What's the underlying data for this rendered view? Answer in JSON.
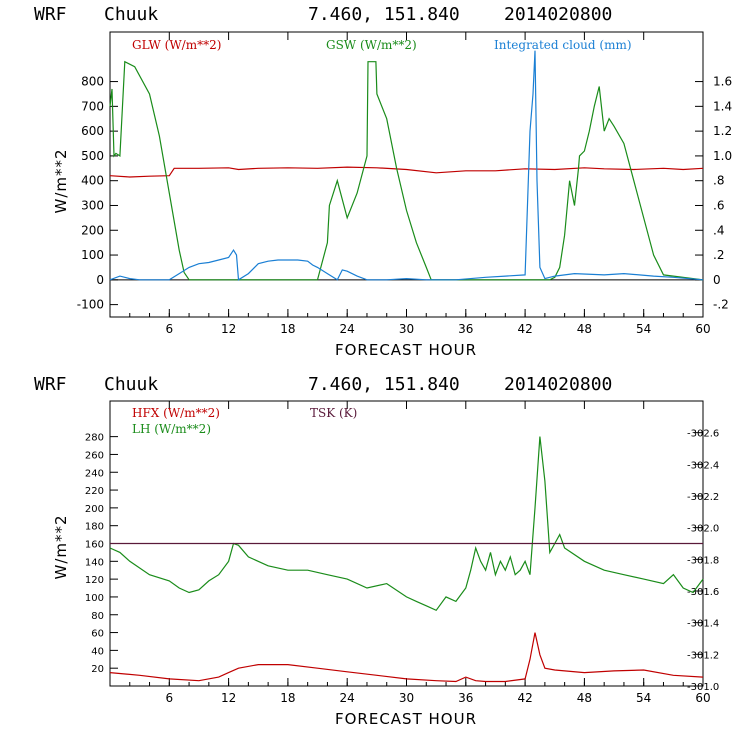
{
  "colors": {
    "red": "#c00000",
    "green": "#1a8c1a",
    "blue": "#1a7fd4",
    "purple": "#5a1a3a"
  },
  "chart_data": [
    {
      "type": "line",
      "header": {
        "model": "WRF",
        "station": "Chuuk",
        "coords": "7.460, 151.840",
        "date": "2014020800"
      },
      "xlabel": "FORECAST HOUR",
      "ylabel": "W/m**2",
      "xlim": [
        0,
        60
      ],
      "ylim": [
        -150,
        1000
      ],
      "y2lim": [
        -0.3,
        2.0
      ],
      "x_ticks": [
        "6",
        "12",
        "18",
        "24",
        "30",
        "36",
        "42",
        "48",
        "54",
        "60"
      ],
      "y_ticks": [
        "-100",
        "0",
        "100",
        "200",
        "300",
        "400",
        "500",
        "600",
        "700",
        "800"
      ],
      "y2_ticks": [
        "-.2",
        "0",
        ".2",
        ".4",
        ".6",
        ".8",
        "1.0",
        "1.2",
        "1.4",
        "1.6"
      ],
      "reference_line": 0,
      "series": [
        {
          "name": "GLW (W/m**2)",
          "color": "red",
          "axis": "left",
          "x": [
            0,
            2,
            4,
            6,
            6.5,
            9,
            12,
            13,
            15,
            18,
            21,
            24,
            27,
            30,
            33,
            36,
            39,
            42,
            45,
            48,
            50,
            53,
            56,
            58,
            60
          ],
          "y": [
            420,
            415,
            418,
            420,
            450,
            450,
            452,
            445,
            450,
            452,
            450,
            455,
            452,
            445,
            432,
            440,
            440,
            448,
            445,
            452,
            448,
            445,
            450,
            445,
            450
          ]
        },
        {
          "name": "GSW (W/m**2)",
          "color": "green",
          "axis": "left",
          "x": [
            0,
            0.2,
            0.4,
            0.6,
            1.0,
            1.5,
            2.5,
            4,
            5,
            6,
            7,
            7.5,
            8,
            19,
            21,
            22,
            22.2,
            23,
            24,
            25,
            26,
            26.1,
            26.9,
            27,
            28,
            29,
            30,
            31,
            32,
            32.5,
            44.5,
            45,
            45.5,
            46,
            46.5,
            47,
            47.4,
            47.5,
            48,
            48.5,
            49,
            49.5,
            50,
            50.5,
            51,
            52,
            53,
            54,
            55,
            56,
            60
          ],
          "y": [
            700,
            770,
            500,
            510,
            500,
            880,
            860,
            750,
            580,
            350,
            120,
            30,
            0,
            0,
            0,
            150,
            300,
            400,
            250,
            350,
            500,
            880,
            880,
            750,
            650,
            450,
            280,
            150,
            50,
            0,
            0,
            10,
            50,
            180,
            400,
            300,
            450,
            500,
            520,
            600,
            700,
            780,
            600,
            650,
            620,
            550,
            400,
            250,
            100,
            20,
            0
          ]
        },
        {
          "name": "Integrated cloud (mm)",
          "color": "blue",
          "axis": "right",
          "x": [
            0,
            1,
            2,
            3,
            6,
            7,
            8,
            9,
            10,
            11,
            12,
            12.5,
            12.8,
            13,
            14,
            15,
            16,
            17,
            18,
            19,
            20,
            20.5,
            21,
            22,
            23,
            23.5,
            24,
            25,
            26,
            28,
            30,
            32,
            35,
            38,
            40,
            42,
            42.5,
            42.8,
            43,
            43.2,
            43.5,
            44,
            45,
            47,
            50,
            52,
            55,
            57,
            60
          ],
          "y": [
            0,
            0.03,
            0.01,
            0,
            0,
            0.05,
            0.1,
            0.13,
            0.14,
            0.16,
            0.18,
            0.24,
            0.2,
            0,
            0.05,
            0.13,
            0.15,
            0.16,
            0.16,
            0.16,
            0.15,
            0.12,
            0.1,
            0.05,
            0,
            0.08,
            0.07,
            0.03,
            0,
            0,
            0.01,
            0,
            0,
            0.02,
            0.03,
            0.04,
            1.2,
            1.5,
            1.85,
            0.8,
            0.1,
            0.01,
            0.03,
            0.05,
            0.04,
            0.05,
            0.03,
            0.02,
            0
          ]
        }
      ]
    },
    {
      "type": "line",
      "header": {
        "model": "WRF",
        "station": "Chuuk",
        "coords": "7.460, 151.840",
        "date": "2014020800"
      },
      "xlabel": "FORECAST HOUR",
      "ylabel": "W/m**2",
      "xlim": [
        0,
        60
      ],
      "ylim": [
        0,
        320
      ],
      "y2lim": [
        301.0,
        302.8
      ],
      "x_ticks": [
        "6",
        "12",
        "18",
        "24",
        "30",
        "36",
        "42",
        "48",
        "54",
        "60"
      ],
      "y_ticks": [
        "20",
        "40",
        "60",
        "80",
        "100",
        "120",
        "140",
        "160",
        "180",
        "200",
        "220",
        "240",
        "260",
        "280"
      ],
      "y2_ticks": [
        "301.0",
        "301.2",
        "301.4",
        "301.6",
        "301.8",
        "302.0",
        "302.2",
        "302.4",
        "302.6"
      ],
      "series": [
        {
          "name": "HFX (W/m**2)",
          "color": "red",
          "axis": "left",
          "x": [
            0,
            3,
            6,
            9,
            11,
            12,
            13,
            15,
            18,
            21,
            24,
            27,
            30,
            33,
            35,
            36,
            37,
            38,
            40,
            42,
            42.5,
            43,
            43.5,
            44,
            45,
            48,
            51,
            54,
            57,
            60
          ],
          "y": [
            15,
            12,
            8,
            6,
            10,
            15,
            20,
            24,
            24,
            20,
            16,
            12,
            8,
            6,
            5,
            10,
            6,
            5,
            5,
            8,
            30,
            60,
            35,
            20,
            18,
            15,
            17,
            18,
            12,
            10
          ]
        },
        {
          "name": "LH (W/m**2)",
          "color": "green",
          "axis": "left",
          "x": [
            0,
            1,
            2,
            4,
            6,
            7,
            8,
            9,
            10,
            11,
            12,
            12.5,
            13,
            14,
            16,
            18,
            20,
            22,
            24,
            26,
            28,
            30,
            31,
            32,
            33,
            34,
            35,
            36,
            36.5,
            37,
            37.5,
            38,
            38.5,
            39,
            39.5,
            40,
            40.5,
            41,
            41.5,
            42,
            42.5,
            43,
            43.5,
            44,
            44.5,
            45,
            45.5,
            46,
            48,
            50,
            52,
            54,
            56,
            57,
            58,
            59,
            60
          ],
          "y": [
            155,
            150,
            140,
            125,
            118,
            110,
            105,
            108,
            118,
            125,
            140,
            160,
            158,
            145,
            135,
            130,
            130,
            125,
            120,
            110,
            115,
            100,
            95,
            90,
            85,
            100,
            95,
            110,
            130,
            155,
            140,
            130,
            150,
            125,
            140,
            130,
            145,
            125,
            130,
            140,
            125,
            200,
            280,
            230,
            150,
            160,
            170,
            155,
            140,
            130,
            125,
            120,
            115,
            125,
            110,
            105,
            120
          ]
        },
        {
          "name": "TSK (K)",
          "color": "purple",
          "axis": "left",
          "x": [
            0,
            60
          ],
          "y": [
            160,
            160
          ]
        }
      ]
    }
  ]
}
